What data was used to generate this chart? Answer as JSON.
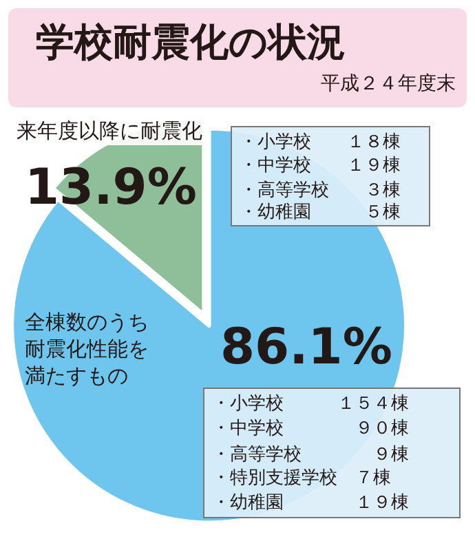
{
  "chart_data": {
    "type": "pie",
    "title": "学校耐震化の状況",
    "subtitle": "平成２４年度末",
    "categories": [
      "全棟数のうち耐震化性能を満たすもの",
      "来年度以降に耐震化"
    ],
    "values": [
      86.1,
      13.9
    ],
    "value_labels": [
      "86.1%",
      "13.9%"
    ],
    "colors": [
      "#6ec6ee",
      "#8fbf98"
    ],
    "annotations": [
      "・小学校　　１８棟",
      "・中学校　　１９棟",
      "・高等学校　　３棟",
      "・幼稚園　　　５棟",
      "・小学校　　　１５４棟",
      "・中学校　　　　９０棟",
      "・高等学校　　　　９棟",
      "・特別支援学校　７棟",
      "・幼稚園　　　　１９棟"
    ]
  }
}
